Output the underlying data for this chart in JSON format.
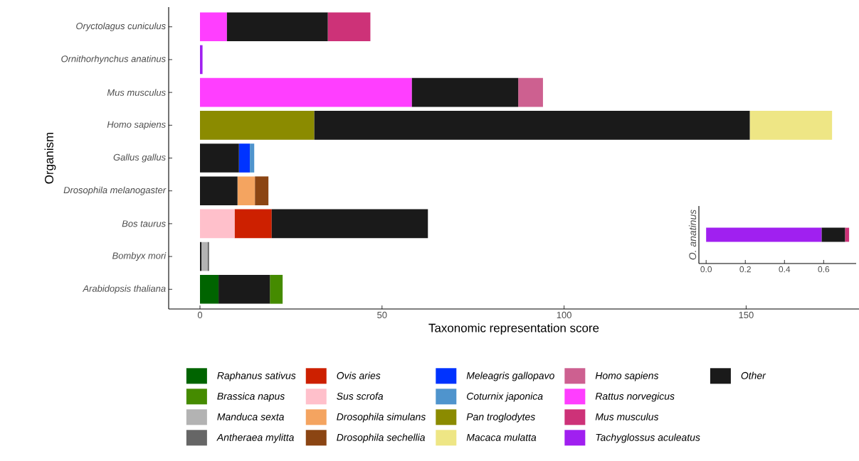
{
  "chart_data": [
    {
      "type": "bar",
      "orientation": "horizontal",
      "xlabel": "Taxonomic representation score",
      "ylabel": "Organism",
      "categories": [
        "Oryctolagus cuniculus",
        "Ornithorhynchus anatinus",
        "Mus musculus",
        "Homo sapiens",
        "Gallus gallus",
        "Drosophila melanogaster",
        "Bos taurus",
        "Bombyx mori",
        "Arabidopsis thaliana"
      ],
      "xlim": [
        -8.6,
        181
      ],
      "xticks": [
        0,
        50,
        100,
        150
      ],
      "legend": "bottom",
      "series": [
        {
          "name": "Raphanus sativus",
          "color": "#006400",
          "values": [
            null,
            null,
            null,
            null,
            null,
            null,
            null,
            null,
            5.1
          ],
          "base": [
            null,
            null,
            null,
            null,
            null,
            null,
            null,
            null,
            0
          ]
        },
        {
          "name": "Brassica napus",
          "color": "#458b00",
          "values": [
            null,
            null,
            null,
            null,
            null,
            null,
            null,
            null,
            3.5
          ],
          "base": [
            null,
            null,
            null,
            null,
            null,
            null,
            null,
            null,
            19.2
          ]
        },
        {
          "name": "Manduca sexta",
          "color": "#b3b3b3",
          "values": [
            null,
            null,
            null,
            null,
            null,
            null,
            null,
            1.7,
            null
          ],
          "base": [
            null,
            null,
            null,
            null,
            null,
            null,
            null,
            0.4,
            null
          ]
        },
        {
          "name": "Antheraea mylitta",
          "color": "#666666",
          "values": [
            null,
            null,
            null,
            null,
            null,
            null,
            null,
            0.4,
            null
          ],
          "base": [
            null,
            null,
            null,
            null,
            null,
            null,
            null,
            2.1,
            null
          ]
        },
        {
          "name": "Ovis aries",
          "color": "#cd2000",
          "values": [
            null,
            null,
            null,
            null,
            null,
            null,
            10.2,
            null,
            null
          ],
          "base": [
            null,
            null,
            null,
            null,
            null,
            null,
            9.5,
            null,
            null
          ]
        },
        {
          "name": "Sus scrofa",
          "color": "#ffc0cb",
          "values": [
            null,
            null,
            null,
            null,
            null,
            null,
            9.5,
            null,
            null
          ],
          "base": [
            null,
            null,
            null,
            null,
            null,
            null,
            0,
            null,
            null
          ]
        },
        {
          "name": "Drosophila simulans",
          "color": "#f4a460",
          "values": [
            null,
            null,
            null,
            null,
            null,
            4.8,
            null,
            null,
            null
          ],
          "base": [
            null,
            null,
            null,
            null,
            null,
            10.3,
            null,
            null,
            null
          ]
        },
        {
          "name": "Drosophila sechellia",
          "color": "#8b4513",
          "values": [
            null,
            null,
            null,
            null,
            null,
            3.7,
            null,
            null,
            null
          ],
          "base": [
            null,
            null,
            null,
            null,
            null,
            15.1,
            null,
            null,
            null
          ]
        },
        {
          "name": "Meleagris gallopavo",
          "color": "#0033ff",
          "values": [
            null,
            null,
            null,
            null,
            3.0,
            null,
            null,
            null,
            null
          ],
          "base": [
            null,
            null,
            null,
            null,
            10.7,
            null,
            null,
            null,
            null
          ]
        },
        {
          "name": "Coturnix japonica",
          "color": "#4f94cd",
          "values": [
            null,
            null,
            null,
            null,
            1.2,
            null,
            null,
            null,
            null
          ],
          "base": [
            null,
            null,
            null,
            null,
            13.7,
            null,
            null,
            null,
            null
          ]
        },
        {
          "name": "Pan troglodytes",
          "color": "#8b8b00",
          "values": [
            null,
            null,
            null,
            31.4,
            null,
            null,
            null,
            null,
            null
          ],
          "base": [
            null,
            null,
            null,
            0,
            null,
            null,
            null,
            null,
            null
          ]
        },
        {
          "name": "Macaca mulatta",
          "color": "#eee685",
          "values": [
            null,
            null,
            null,
            22.6,
            null,
            null,
            null,
            null,
            null
          ],
          "base": [
            null,
            null,
            null,
            151.0,
            null,
            null,
            null,
            null,
            null
          ]
        },
        {
          "name": "Homo sapiens",
          "color": "#cd6090",
          "values": [
            null,
            null,
            6.8,
            null,
            null,
            null,
            null,
            null,
            null
          ],
          "base": [
            null,
            null,
            87.4,
            null,
            null,
            null,
            null,
            null,
            null
          ]
        },
        {
          "name": "Rattus norvegicus",
          "color": "#ff3eff",
          "values": [
            7.4,
            null,
            58.2,
            null,
            null,
            null,
            null,
            null,
            null
          ],
          "base": [
            0,
            null,
            0,
            null,
            null,
            null,
            null,
            null,
            null
          ]
        },
        {
          "name": "Mus musculus",
          "color": "#cd3278",
          "values": [
            11.7,
            null,
            null,
            null,
            null,
            null,
            null,
            null,
            null
          ],
          "base": [
            35.1,
            null,
            null,
            null,
            null,
            null,
            null,
            null,
            null
          ]
        },
        {
          "name": "Tachyglossus aculeatus",
          "color": "#a020f0",
          "values": [
            null,
            0.7,
            null,
            null,
            null,
            null,
            null,
            null,
            null
          ],
          "base": [
            null,
            0,
            null,
            null,
            null,
            null,
            null,
            null,
            null
          ]
        },
        {
          "name": "Other",
          "color": "#1a1a1a",
          "values": [
            27.7,
            null,
            29.2,
            119.6,
            10.7,
            10.3,
            42.9,
            0.4,
            14.1
          ],
          "base": [
            7.4,
            null,
            58.2,
            31.4,
            0,
            0,
            19.7,
            0,
            5.1
          ]
        }
      ]
    },
    {
      "type": "bar",
      "orientation": "horizontal",
      "ylabel": "O. anatinus",
      "categories": [
        null
      ],
      "tick_labels": "x",
      "xlim": [
        -0.037,
        0.766
      ],
      "xticks": [
        {
          "value": 0,
          "label": "0.0"
        },
        {
          "value": 0.2,
          "label": "0.2"
        },
        {
          "value": 0.4,
          "label": "0.4"
        },
        {
          "value": 0.6,
          "label": "0.6"
        }
      ],
      "series": [
        {
          "color": "#a020f0",
          "values": [
            0.59
          ],
          "base": [
            0
          ]
        },
        {
          "color": "#1a1a1a",
          "values": [
            0.12
          ],
          "base": [
            0.59
          ]
        },
        {
          "color": "#cd3278",
          "values": [
            0.02
          ],
          "base": [
            0.71
          ]
        }
      ]
    }
  ]
}
